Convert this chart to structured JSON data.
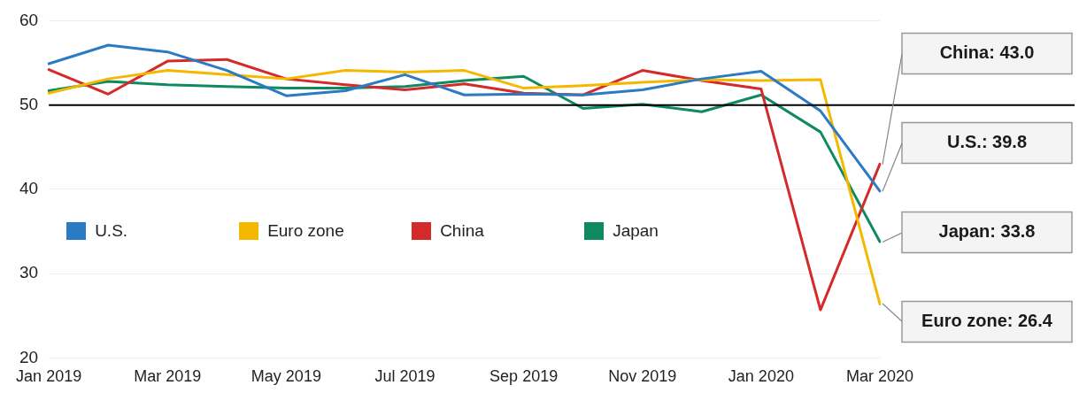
{
  "chart_data": {
    "type": "line",
    "categories": [
      "Jan 2019",
      null,
      "Mar 2019",
      null,
      "May 2019",
      null,
      "Jul 2019",
      null,
      "Sep 2019",
      null,
      "Nov 2019",
      null,
      "Jan 2020",
      null,
      "Mar 2020"
    ],
    "series": [
      {
        "name": "U.S.",
        "color": "#2a7bc4",
        "values": [
          54.9,
          57.1,
          56.3,
          54.1,
          51.1,
          51.7,
          53.6,
          51.2,
          51.3,
          51.2,
          51.8,
          53.1,
          54.0,
          49.3,
          39.8
        ]
      },
      {
        "name": "Euro zone",
        "color": "#f5b800",
        "values": [
          51.4,
          53.1,
          54.1,
          53.6,
          53.1,
          54.1,
          53.9,
          54.1,
          52.0,
          52.3,
          52.7,
          53.0,
          52.9,
          53.0,
          26.4
        ]
      },
      {
        "name": "China",
        "color": "#d42a2a",
        "values": [
          54.2,
          51.3,
          55.2,
          55.4,
          53.1,
          52.4,
          51.8,
          52.5,
          51.4,
          51.2,
          54.1,
          52.9,
          51.9,
          25.7,
          43.0
        ]
      },
      {
        "name": "Japan",
        "color": "#0f8a5f",
        "values": [
          51.7,
          52.8,
          52.4,
          52.2,
          52.0,
          52.0,
          52.2,
          52.9,
          53.4,
          49.6,
          50.1,
          49.2,
          51.2,
          46.8,
          33.8
        ]
      }
    ],
    "ylim": [
      20,
      60
    ],
    "yticks": [
      20,
      30,
      40,
      50,
      60
    ],
    "grid": "y",
    "legend": "center left",
    "marker": "none",
    "line_style": "solid",
    "ref_lines": [
      {
        "axis": "y",
        "value": 50,
        "color": "#000000"
      }
    ],
    "annotations": [
      "China: 43.0",
      "U.S.: 39.8",
      "Japan: 33.8",
      "Euro zone: 26.4"
    ]
  }
}
